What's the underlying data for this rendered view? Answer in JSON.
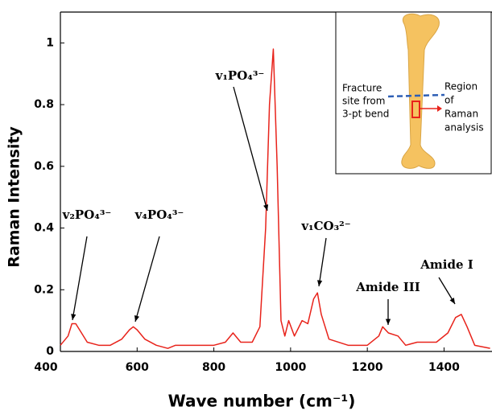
{
  "chart_data": {
    "type": "line",
    "x_label": "Wave number (cm⁻¹)",
    "y_label": "Raman Intensity",
    "x": [
      400,
      420,
      430,
      440,
      450,
      470,
      500,
      530,
      560,
      580,
      590,
      600,
      620,
      650,
      680,
      700,
      750,
      800,
      830,
      850,
      870,
      900,
      920,
      935,
      945,
      955,
      965,
      975,
      985,
      995,
      1010,
      1030,
      1045,
      1060,
      1070,
      1080,
      1100,
      1150,
      1200,
      1230,
      1240,
      1255,
      1280,
      1300,
      1330,
      1380,
      1410,
      1430,
      1445,
      1460,
      1480,
      1520
    ],
    "series": [
      {
        "color": "#e8231b",
        "values": [
          0.02,
          0.05,
          0.09,
          0.09,
          0.07,
          0.03,
          0.02,
          0.02,
          0.04,
          0.07,
          0.08,
          0.07,
          0.04,
          0.02,
          0.01,
          0.02,
          0.02,
          0.02,
          0.03,
          0.06,
          0.03,
          0.03,
          0.08,
          0.4,
          0.8,
          0.98,
          0.6,
          0.1,
          0.05,
          0.1,
          0.05,
          0.1,
          0.09,
          0.17,
          0.19,
          0.12,
          0.04,
          0.02,
          0.02,
          0.05,
          0.08,
          0.06,
          0.05,
          0.02,
          0.03,
          0.03,
          0.06,
          0.11,
          0.12,
          0.08,
          0.02,
          0.01
        ]
      }
    ],
    "xlim": [
      400,
      1525
    ],
    "ylim": [
      0,
      1.1
    ],
    "xticks": [
      400,
      600,
      800,
      1000,
      1200,
      1400
    ],
    "yticks": [
      0,
      0.2,
      0.4,
      0.6,
      0.8,
      1
    ],
    "annotations": [
      "v₂PO₄³⁻",
      "v₄PO₄³⁻",
      "v₁PO₄³⁻",
      "v₁CO₃²⁻",
      "Amide III",
      "Amide I"
    ],
    "inset": {
      "left_label": [
        "Fracture",
        "site from",
        "3-pt bend"
      ],
      "right_label": [
        "Region",
        "of",
        "Raman",
        "analysis"
      ]
    }
  }
}
